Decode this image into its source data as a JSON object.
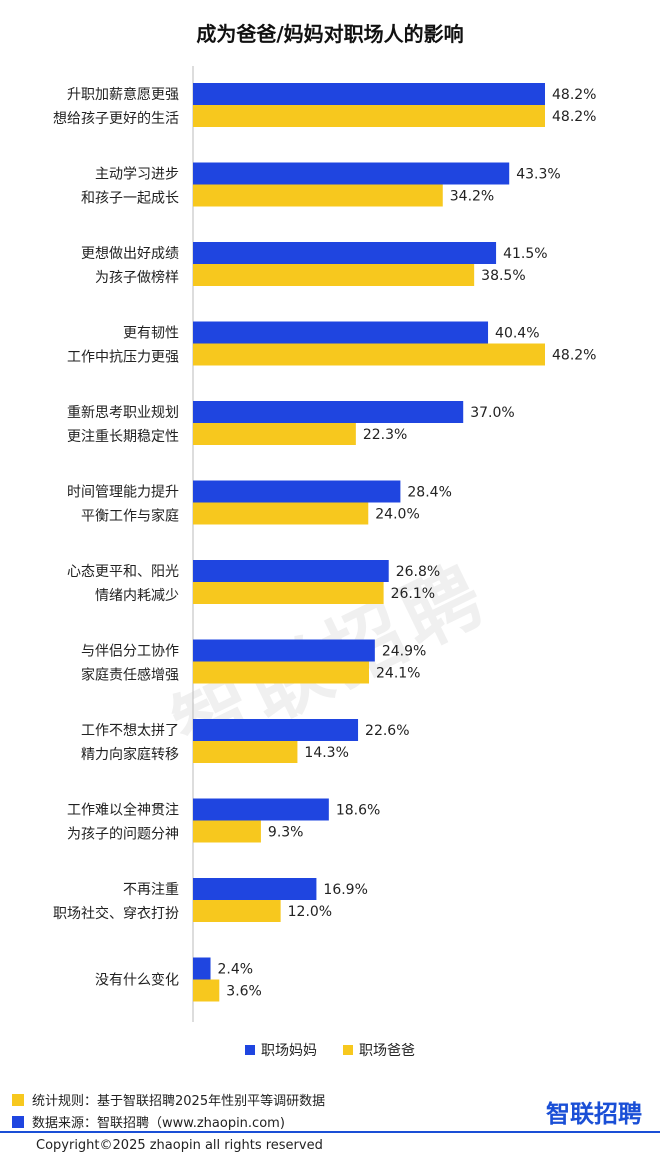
{
  "chart_data": {
    "type": "bar",
    "orientation": "horizontal",
    "title": "成为爸爸/妈妈对职场人的影响",
    "categories": [
      [
        "升职加薪意愿更强",
        "想给孩子更好的生活"
      ],
      [
        "主动学习进步",
        "和孩子一起成长"
      ],
      [
        "更想做出好成绩",
        "为孩子做榜样"
      ],
      [
        "更有韧性",
        "工作中抗压力更强"
      ],
      [
        "重新思考职业规划",
        "更注重长期稳定性"
      ],
      [
        "时间管理能力提升",
        "平衡工作与家庭"
      ],
      [
        "心态更平和、阳光",
        "情绪内耗减少"
      ],
      [
        "与伴侣分工协作",
        "家庭责任感增强"
      ],
      [
        "工作不想太拼了",
        "精力向家庭转移"
      ],
      [
        "工作难以全神贯注",
        "为孩子的问题分神"
      ],
      [
        "不再注重",
        "职场社交、穿衣打扮"
      ],
      [
        "没有什么变化"
      ]
    ],
    "series": [
      {
        "name": "职场妈妈",
        "color": "#1f45e0",
        "values": [
          48.2,
          43.3,
          41.5,
          40.4,
          37.0,
          28.4,
          26.8,
          24.9,
          22.6,
          18.6,
          16.9,
          2.4
        ],
        "labels": [
          "48.2%",
          "43.3%",
          "41.5%",
          "40.4%",
          "37.0%",
          "28.4%",
          "26.8%",
          "24.9%",
          "22.6%",
          "18.6%",
          "16.9%",
          "2.4%"
        ]
      },
      {
        "name": "职场爸爸",
        "color": "#f7c81e",
        "values": [
          48.2,
          34.2,
          38.5,
          48.2,
          22.3,
          24.0,
          26.1,
          24.1,
          14.3,
          9.3,
          12.0,
          3.6
        ],
        "labels": [
          "48.2%",
          "34.2%",
          "38.5%",
          "48.2%",
          "22.3%",
          "24.0%",
          "26.1%",
          "24.1%",
          "14.3%",
          "9.3%",
          "12.0%",
          "3.6%"
        ]
      }
    ],
    "xlim": [
      0,
      50
    ],
    "grid": false,
    "legend": "bottom"
  },
  "watermark": "智联招聘",
  "footer": {
    "rule": "统计规则：基于智联招聘2025年性别平等调研数据",
    "source": "数据来源：智联招聘（www.zhaopin.com)",
    "rule_color": "#f7c81e",
    "source_color": "#1f45e0",
    "brand": "智联招聘",
    "copyright": "Copyright©2025 zhaopin all rights reserved"
  }
}
